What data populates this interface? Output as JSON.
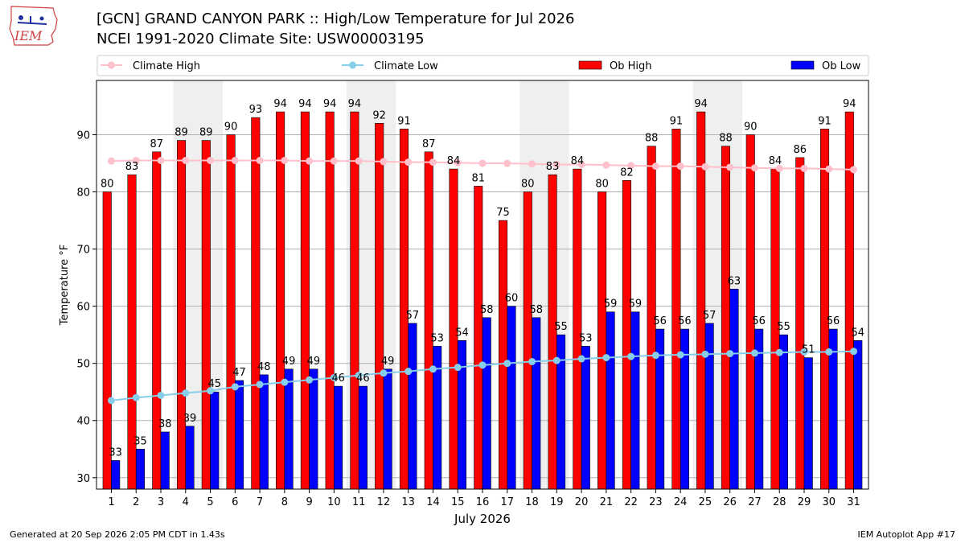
{
  "header": {
    "logo_text": "IEM",
    "title_line1": "[GCN] GRAND CANYON PARK :: High/Low Temperature for Jul 2026",
    "title_line2": "NCEI 1991-2020 Climate Site: USW00003195"
  },
  "footer": {
    "generated": "Generated at 20 Sep 2026 2:05 PM CDT in 1.43s",
    "app": "IEM Autoplot App #17"
  },
  "colors": {
    "ob_high": "#ff0000",
    "ob_low": "#0000ff",
    "climate_high": "#ffc0cb",
    "climate_low": "#87ceeb",
    "weekend_shade": "#efefef"
  },
  "chart_data": {
    "type": "bar",
    "xlabel": "July 2026",
    "ylabel": "Temperature °F",
    "ylim": [
      28,
      99.5
    ],
    "yticks": [
      30,
      40,
      50,
      60,
      70,
      80,
      90
    ],
    "grid": true,
    "legend_position": "top",
    "categories": [
      "1",
      "2",
      "3",
      "4",
      "5",
      "6",
      "7",
      "8",
      "9",
      "10",
      "11",
      "12",
      "13",
      "14",
      "15",
      "16",
      "17",
      "18",
      "19",
      "20",
      "21",
      "22",
      "23",
      "24",
      "25",
      "26",
      "27",
      "28",
      "29",
      "30",
      "31"
    ],
    "shaded_days": [
      4,
      5,
      11,
      12,
      18,
      19,
      25,
      26
    ],
    "series": [
      {
        "name": "Ob High",
        "kind": "bar",
        "values": [
          80,
          83,
          87,
          89,
          89,
          90,
          93,
          94,
          94,
          94,
          94,
          92,
          91,
          87,
          84,
          81,
          75,
          80,
          83,
          84,
          80,
          82,
          88,
          91,
          94,
          88,
          90,
          84,
          86,
          91,
          94
        ]
      },
      {
        "name": "Ob Low",
        "kind": "bar",
        "values": [
          33,
          35,
          38,
          39,
          45,
          47,
          48,
          49,
          49,
          46,
          46,
          49,
          57,
          53,
          54,
          58,
          60,
          58,
          55,
          53,
          59,
          59,
          56,
          56,
          57,
          63,
          56,
          55,
          51,
          56,
          54
        ]
      },
      {
        "name": "Climate High",
        "kind": "line",
        "values": [
          85.4,
          85.5,
          85.5,
          85.5,
          85.5,
          85.5,
          85.5,
          85.5,
          85.4,
          85.4,
          85.4,
          85.3,
          85.2,
          85.2,
          85.1,
          85.0,
          85.0,
          84.9,
          84.8,
          84.8,
          84.7,
          84.6,
          84.5,
          84.5,
          84.4,
          84.3,
          84.2,
          84.1,
          84.1,
          84.0,
          83.9
        ]
      },
      {
        "name": "Climate Low",
        "kind": "line",
        "values": [
          43.5,
          44.0,
          44.4,
          44.8,
          45.2,
          45.9,
          46.3,
          46.7,
          47.1,
          47.5,
          47.9,
          48.3,
          48.6,
          49.0,
          49.3,
          49.7,
          50.0,
          50.3,
          50.5,
          50.8,
          51.0,
          51.2,
          51.4,
          51.5,
          51.6,
          51.7,
          51.8,
          51.9,
          52.0,
          52.0,
          52.1
        ]
      }
    ]
  }
}
